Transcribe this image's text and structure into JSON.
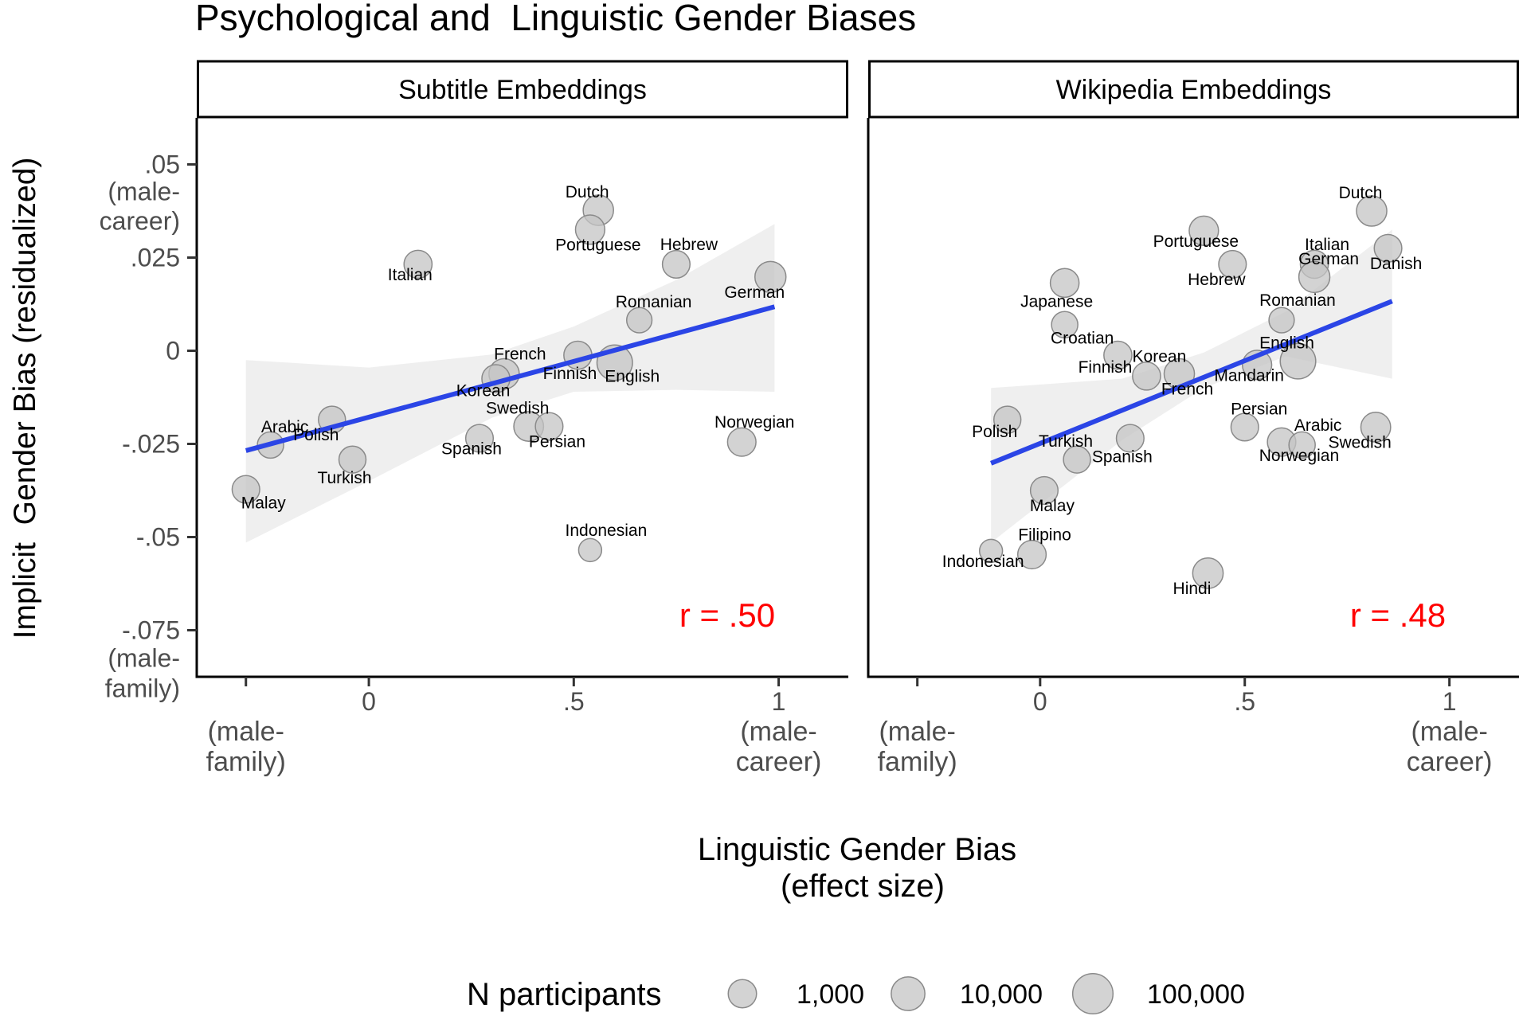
{
  "chart_data": {
    "type": "scatter",
    "title": "Psychological and  Linguistic Gender Biases",
    "ylabel": "Implicit  Gender Bias (residualized)",
    "xlabel": "Linguistic Gender Bias",
    "xlabel2": "(effect size)",
    "ylim": [
      -0.0875,
      0.0625
    ],
    "xlim": [
      -0.42,
      1.17
    ],
    "y_ticks": [
      {
        "value": 0.05,
        "label": ".05",
        "sub": [
          "(male-",
          "career)"
        ]
      },
      {
        "value": 0.025,
        "label": ".025"
      },
      {
        "value": 0,
        "label": "0"
      },
      {
        "value": -0.025,
        "label": "-.025"
      },
      {
        "value": -0.05,
        "label": "-.05"
      },
      {
        "value": -0.075,
        "label": "-.075",
        "sub": [
          "(male-",
          "family)"
        ]
      }
    ],
    "x_ticks": [
      {
        "value": -0.3,
        "label": "",
        "sub": [
          "(male-",
          "family)"
        ]
      },
      {
        "value": 0,
        "label": "0"
      },
      {
        "value": 0.5,
        "label": ".5"
      },
      {
        "value": 1,
        "label": "1",
        "sub": [
          "(male-",
          "career)"
        ]
      }
    ],
    "legend": {
      "title": "N participants",
      "position": "bottom",
      "entries": [
        {
          "label": "1,000",
          "n": 1000
        },
        {
          "label": "10,000",
          "n": 10000
        },
        {
          "label": "100,000",
          "n": 100000
        }
      ]
    },
    "colors": {
      "point_fill": "#c4c4c4",
      "point_stroke": "#8a8a8a",
      "line": "#2b45e6",
      "ribbon": "#ececec",
      "corr": "#ff0000"
    },
    "panels": [
      {
        "strip": "Subtitle Embeddings",
        "r_label": "r = .50",
        "fit": {
          "x0": -0.3,
          "y0": -0.0268,
          "x1": 0.99,
          "y1": 0.0118
        },
        "band": [
          {
            "x": -0.3,
            "lo": -0.0515,
            "hi": -0.0025
          },
          {
            "x": 0.0,
            "lo": -0.035,
            "hi": -0.0045
          },
          {
            "x": 0.3,
            "lo": -0.018,
            "hi": -0.001
          },
          {
            "x": 0.5,
            "lo": -0.011,
            "hi": 0.0065
          },
          {
            "x": 0.75,
            "lo": -0.0105,
            "hi": 0.019
          },
          {
            "x": 0.99,
            "lo": -0.011,
            "hi": 0.034
          }
        ],
        "points": [
          {
            "label": "Dutch",
            "x": 0.56,
            "y": 0.0377,
            "n": 15000
          },
          {
            "label": "Portuguese",
            "x": 0.54,
            "y": 0.0325,
            "n": 10000
          },
          {
            "label": "Italian",
            "x": 0.12,
            "y": 0.0232,
            "n": 6000
          },
          {
            "label": "Hebrew",
            "x": 0.75,
            "y": 0.0232,
            "n": 5000
          },
          {
            "label": "German",
            "x": 0.98,
            "y": 0.0198,
            "n": 20000
          },
          {
            "label": "Romanian",
            "x": 0.66,
            "y": 0.0082,
            "n": 2000
          },
          {
            "label": "Finnish",
            "x": 0.51,
            "y": -0.0012,
            "n": 6000
          },
          {
            "label": "English",
            "x": 0.6,
            "y": -0.0032,
            "n": 120000
          },
          {
            "label": "French",
            "x": 0.33,
            "y": -0.0062,
            "n": 15000
          },
          {
            "label": "Korean",
            "x": 0.31,
            "y": -0.0075,
            "n": 6000
          },
          {
            "label": "Swedish",
            "x": 0.39,
            "y": -0.0203,
            "n": 12000
          },
          {
            "label": "Persian",
            "x": 0.44,
            "y": -0.0203,
            "n": 5000
          },
          {
            "label": "Spanish",
            "x": 0.27,
            "y": -0.0235,
            "n": 5000
          },
          {
            "label": "Norwegian",
            "x": 0.91,
            "y": -0.0245,
            "n": 7000
          },
          {
            "label": "Polish",
            "x": -0.09,
            "y": -0.0185,
            "n": 4000
          },
          {
            "label": "Arabic",
            "x": -0.24,
            "y": -0.0253,
            "n": 3000
          },
          {
            "label": "Turkish",
            "x": -0.04,
            "y": -0.0292,
            "n": 4000
          },
          {
            "label": "Malay",
            "x": -0.3,
            "y": -0.0372,
            "n": 5000
          },
          {
            "label": "Indonesian",
            "x": 0.54,
            "y": -0.0535,
            "n": 800
          }
        ]
      },
      {
        "strip": "Wikipedia Embeddings",
        "r_label": "r = .48",
        "fit": {
          "x0": -0.12,
          "y0": -0.0302,
          "x1": 0.86,
          "y1": 0.0133
        },
        "band": [
          {
            "x": -0.12,
            "lo": -0.0515,
            "hi": -0.01
          },
          {
            "x": 0.2,
            "lo": -0.024,
            "hi": -0.0075
          },
          {
            "x": 0.4,
            "lo": -0.01,
            "hi": -0.0005
          },
          {
            "x": 0.6,
            "lo": -0.0015,
            "hi": 0.0105
          },
          {
            "x": 0.86,
            "lo": -0.0075,
            "hi": 0.0325
          }
        ],
        "points": [
          {
            "label": "Dutch",
            "x": 0.81,
            "y": 0.0375,
            "n": 15000
          },
          {
            "label": "Danish",
            "x": 0.85,
            "y": 0.0275,
            "n": 5000
          },
          {
            "label": "Portuguese",
            "x": 0.4,
            "y": 0.0322,
            "n": 10000
          },
          {
            "label": "Italian",
            "x": 0.67,
            "y": 0.0232,
            "n": 6000
          },
          {
            "label": "Hebrew",
            "x": 0.47,
            "y": 0.0232,
            "n": 5000
          },
          {
            "label": "German",
            "x": 0.67,
            "y": 0.0198,
            "n": 20000
          },
          {
            "label": "Japanese",
            "x": 0.06,
            "y": 0.0182,
            "n": 8000
          },
          {
            "label": "Croatian",
            "x": 0.06,
            "y": 0.007,
            "n": 3000
          },
          {
            "label": "Romanian",
            "x": 0.59,
            "y": 0.0082,
            "n": 2000
          },
          {
            "label": "Finnish",
            "x": 0.19,
            "y": -0.0012,
            "n": 6000
          },
          {
            "label": "English",
            "x": 0.63,
            "y": -0.0028,
            "n": 120000
          },
          {
            "label": "French",
            "x": 0.34,
            "y": -0.0062,
            "n": 15000
          },
          {
            "label": "Mandarin",
            "x": 0.53,
            "y": -0.0038,
            "n": 10000
          },
          {
            "label": "Korean",
            "x": 0.26,
            "y": -0.0068,
            "n": 6000
          },
          {
            "label": "Swedish",
            "x": 0.82,
            "y": -0.0205,
            "n": 12000
          },
          {
            "label": "Persian",
            "x": 0.5,
            "y": -0.0205,
            "n": 5000
          },
          {
            "label": "Spanish",
            "x": 0.22,
            "y": -0.0235,
            "n": 5000
          },
          {
            "label": "Norwegian",
            "x": 0.59,
            "y": -0.0245,
            "n": 7000
          },
          {
            "label": "Arabic",
            "x": 0.64,
            "y": -0.0253,
            "n": 3000
          },
          {
            "label": "Polish",
            "x": -0.08,
            "y": -0.0185,
            "n": 4000
          },
          {
            "label": "Turkish",
            "x": 0.09,
            "y": -0.0292,
            "n": 4000
          },
          {
            "label": "Malay",
            "x": 0.01,
            "y": -0.0375,
            "n": 5000
          },
          {
            "label": "Indonesian",
            "x": -0.12,
            "y": -0.0537,
            "n": 800
          },
          {
            "label": "Filipino",
            "x": -0.02,
            "y": -0.0547,
            "n": 7000
          },
          {
            "label": "Hindi",
            "x": 0.41,
            "y": -0.0597,
            "n": 16000
          }
        ]
      }
    ]
  }
}
